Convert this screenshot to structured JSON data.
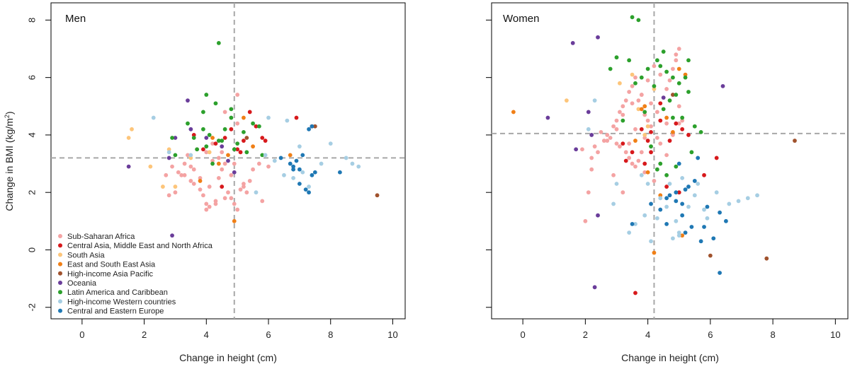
{
  "chart_data": {
    "type": "scatter",
    "colors": {
      "Sub-Saharan Africa": "#f4a3a3",
      "Central Asia, Middle East and North Africa": "#d7191c",
      "South Asia": "#fdc57a",
      "East and South East Asia": "#f07f16",
      "High-income Asia Pacific": "#a0522d",
      "Oceania": "#6a3d9a",
      "Latin America and Caribbean": "#2ca02c",
      "High-income Western countries": "#a6cee3",
      "Central and Eastern Europe": "#1f78b4"
    },
    "legend": [
      "Sub-Saharan Africa",
      "Central Asia, Middle East and North Africa",
      "South Asia",
      "East and South East Asia",
      "High-income Asia Pacific",
      "Oceania",
      "Latin America and Caribbean",
      "High-income Western countries",
      "Central and Eastern Europe"
    ],
    "panels": [
      {
        "title": "Men",
        "xlabel": "Change in height (cm)",
        "ylabel": "Change in BMI (kg/m",
        "ylabel_sup": "2",
        "ylabel_end": ")",
        "xlim": [
          -1,
          10.4
        ],
        "ylim": [
          -2.4,
          8.6
        ],
        "xticks": [
          0,
          2,
          4,
          6,
          8,
          10
        ],
        "yticks": [
          -2,
          0,
          2,
          4,
          6,
          8
        ],
        "vline": 4.9,
        "hline": 3.2,
        "series": [
          {
            "name": "Sub-Saharan Africa",
            "x": [
              5.0,
              4.6,
              4.0,
              4.1,
              4.3,
              3.8,
              3.5,
              4.5,
              4.2,
              4.9,
              5.0,
              5.2,
              3.1,
              3.3,
              3.6,
              2.7,
              2.8,
              3.0,
              3.2,
              4.4,
              4.7,
              4.8,
              5.3,
              5.5,
              5.8,
              6.0,
              3.9,
              4.0,
              4.6,
              2.9,
              3.4,
              3.7,
              4.2,
              4.4,
              4.9,
              5.0,
              5.1,
              3.3,
              3.6,
              4.5,
              4.8,
              5.4,
              5.7,
              3.8,
              4.1,
              4.6,
              4.0,
              4.3,
              5.2,
              3.5
            ],
            "y": [
              5.4,
              4.8,
              3.4,
              2.2,
              1.6,
              2.5,
              2.9,
              2.8,
              3.1,
              3.0,
              4.4,
              2.3,
              2.7,
              2.6,
              2.3,
              2.6,
              1.9,
              2.0,
              2.6,
              3.2,
              2.0,
              1.8,
              2.0,
              2.8,
              1.7,
              2.9,
              1.9,
              1.6,
              3.0,
              2.9,
              3.3,
              3.5,
              3.7,
              2.5,
              1.6,
              1.4,
              2.1,
              3.0,
              2.8,
              3.4,
              2.6,
              2.4,
              3.0,
              2.1,
              1.5,
              1.8,
              1.4,
              1.7,
              2.2,
              2.4
            ]
          },
          {
            "name": "Central Asia, Middle East and North Africa",
            "x": [
              5.4,
              5.8,
              4.8,
              5.1,
              4.3,
              3.9,
              5.6,
              4.6,
              5.0,
              5.2,
              6.9,
              7.4,
              4.5,
              5.9,
              3.6
            ],
            "y": [
              4.8,
              3.9,
              4.2,
              3.4,
              3.7,
              3.5,
              4.3,
              3.9,
              3.5,
              3.8,
              4.6,
              4.3,
              2.2,
              3.8,
              4.0
            ]
          },
          {
            "name": "South Asia",
            "x": [
              1.6,
              1.5,
              2.2,
              2.6,
              3.0,
              2.8,
              4.1,
              3.5
            ],
            "y": [
              4.2,
              3.9,
              2.9,
              2.2,
              2.2,
              3.5,
              3.4,
              3.2
            ]
          },
          {
            "name": "East and South East Asia",
            "x": [
              4.9,
              3.8,
              4.4,
              5.5,
              5.2,
              4.7,
              6.7,
              4.2
            ],
            "y": [
              1.0,
              2.4,
              3.0,
              3.6,
              4.6,
              3.3,
              3.3,
              3.9
            ]
          },
          {
            "name": "High-income Asia Pacific",
            "x": [
              9.5,
              7.5,
              5.3
            ],
            "y": [
              1.9,
              4.3,
              3.9
            ]
          },
          {
            "name": "Oceania",
            "x": [
              2.9,
              1.5,
              3.4,
              4.0,
              4.7,
              3.0,
              4.9,
              4.5,
              3.5,
              2.8
            ],
            "y": [
              0.5,
              2.9,
              5.2,
              3.9,
              3.1,
              3.9,
              2.7,
              3.6,
              4.2,
              3.2
            ]
          },
          {
            "name": "Latin America and Caribbean",
            "x": [
              4.4,
              4.0,
              4.8,
              3.9,
              4.3,
              3.4,
              4.6,
              4.1,
              5.0,
              5.5,
              3.7,
              3.0,
              3.6,
              5.2,
              4.5,
              4.9,
              5.8,
              4.2,
              3.9,
              5.3,
              2.9,
              4.8,
              5.7,
              4.4,
              4.0
            ],
            "y": [
              7.2,
              5.4,
              4.9,
              4.8,
              5.1,
              4.4,
              4.2,
              4.0,
              3.7,
              4.4,
              3.5,
              3.3,
              3.9,
              4.1,
              3.8,
              3.5,
              3.3,
              3.0,
              4.2,
              3.4,
              3.9,
              4.6,
              4.3,
              3.8,
              3.6
            ]
          },
          {
            "name": "High-income Western countries",
            "x": [
              8.0,
              8.7,
              8.9,
              7.0,
              6.5,
              7.7,
              6.2,
              5.6,
              5.9,
              2.3,
              2.8,
              3.5,
              6.8,
              7.3,
              7.1,
              6.6,
              6.0,
              8.5
            ],
            "y": [
              3.7,
              3.0,
              2.9,
              3.6,
              2.6,
              3.0,
              3.1,
              2.0,
              3.3,
              4.6,
              3.4,
              3.3,
              2.5,
              2.2,
              2.7,
              4.5,
              4.6,
              3.2
            ]
          },
          {
            "name": "Central and Eastern Europe",
            "x": [
              7.4,
              6.8,
              7.0,
              7.5,
              7.2,
              6.9,
              7.1,
              6.7,
              8.3,
              7.3,
              7.0,
              6.8,
              7.4,
              6.4,
              7.3
            ],
            "y": [
              4.3,
              2.9,
              2.8,
              2.7,
              2.1,
              3.1,
              3.3,
              3.0,
              2.7,
              2.0,
              2.3,
              2.8,
              2.6,
              3.2,
              4.2
            ]
          }
        ]
      },
      {
        "title": "Women",
        "xlabel": "Change in height (cm)",
        "xlim": [
          -1,
          10.4
        ],
        "ylim": [
          -2.4,
          8.6
        ],
        "xticks": [
          0,
          2,
          4,
          6,
          8,
          10
        ],
        "yticks": [
          -2,
          0,
          2,
          4,
          6,
          8
        ],
        "vline": 4.2,
        "hline": 4.05,
        "series": [
          {
            "name": "Sub-Saharan Africa",
            "x": [
              2.0,
              2.2,
              2.4,
              2.6,
              2.7,
              2.9,
              3.0,
              3.1,
              3.2,
              3.3,
              3.4,
              3.5,
              3.6,
              3.7,
              3.8,
              3.9,
              4.0,
              4.1,
              4.3,
              4.5,
              4.6,
              4.7,
              4.8,
              4.9,
              5.0,
              5.1,
              2.5,
              2.8,
              3.1,
              3.4,
              3.6,
              3.9,
              4.2,
              4.4,
              4.6,
              4.8,
              5.0,
              3.0,
              3.3,
              3.7,
              2.9,
              3.2,
              3.5,
              3.8,
              4.1,
              4.4,
              2.1,
              2.3,
              2.7,
              3.0,
              3.2,
              3.5,
              3.8,
              4.0,
              4.2,
              1.9,
              2.2,
              3.6,
              3.9,
              4.6,
              4.9,
              5.0,
              3.4,
              3.8,
              4.3
            ],
            "y": [
              1.0,
              2.8,
              3.4,
              3.8,
              4.0,
              4.3,
              4.5,
              4.8,
              5.0,
              5.2,
              5.5,
              5.7,
              6.0,
              5.2,
              4.9,
              4.7,
              4.5,
              4.3,
              4.8,
              5.3,
              5.6,
              5.9,
              6.3,
              6.6,
              7.0,
              4.5,
              4.1,
              3.9,
              3.6,
              3.2,
              2.9,
              2.7,
              2.4,
              3.7,
              3.3,
              4.0,
              4.4,
              3.7,
              3.4,
              3.1,
              2.6,
              2.0,
              3.0,
              5.4,
              5.1,
              6.1,
              2.0,
              3.6,
              3.8,
              4.2,
              4.7,
              5.1,
              5.4,
              5.9,
              6.4,
              3.5,
              3.2,
              4.2,
              3.9,
              4.4,
              6.8,
              5.0,
              3.7,
              3.4,
              3.9
            ]
          },
          {
            "name": "Central Asia, Middle East and North Africa",
            "x": [
              3.6,
              3.2,
              3.5,
              4.0,
              3.8,
              4.4,
              4.9,
              5.1,
              5.3,
              4.7,
              4.1,
              3.9,
              3.3,
              4.6,
              5.0,
              5.8,
              6.2,
              4.4,
              4.1
            ],
            "y": [
              -1.5,
              3.7,
              3.4,
              3.8,
              4.2,
              4.5,
              4.4,
              4.2,
              4.0,
              3.8,
              3.4,
              3.0,
              3.1,
              2.2,
              2.0,
              2.6,
              3.2,
              5.1,
              4.1
            ]
          },
          {
            "name": "South Asia",
            "x": [
              1.4,
              3.1,
              3.5,
              4.2,
              4.0,
              3.7,
              3.9
            ],
            "y": [
              5.2,
              5.8,
              6.1,
              5.6,
              4.3,
              4.9,
              4.0
            ]
          },
          {
            "name": "East and South East Asia",
            "x": [
              -0.3,
              3.6,
              4.2,
              4.4,
              4.0,
              3.8,
              5.0,
              5.2,
              4.8,
              5.1,
              4.6,
              3.9
            ],
            "y": [
              4.8,
              3.8,
              -0.1,
              1.9,
              2.7,
              4.9,
              6.3,
              6.1,
              4.1,
              0.5,
              4.6,
              5.0
            ]
          },
          {
            "name": "High-income Asia Pacific",
            "x": [
              8.7,
              7.8,
              6.0,
              4.8
            ],
            "y": [
              3.8,
              -0.3,
              -0.2,
              5.4
            ]
          },
          {
            "name": "Oceania",
            "x": [
              1.6,
              2.4,
              6.4,
              0.8,
              1.7,
              2.4,
              2.3,
              2.1,
              4.5,
              2.2
            ],
            "y": [
              7.2,
              7.4,
              5.7,
              4.6,
              3.5,
              1.2,
              -1.3,
              4.8,
              5.3,
              4.0
            ]
          },
          {
            "name": "Latin America and Caribbean",
            "x": [
              3.5,
              3.7,
              4.5,
              4.4,
              4.3,
              4.0,
              3.8,
              3.6,
              3.4,
              4.6,
              4.8,
              5.0,
              5.2,
              5.3,
              4.9,
              4.7,
              4.2,
              3.2,
              3.0,
              2.8,
              5.5,
              5.4,
              5.7,
              4.1,
              4.3,
              4.6,
              4.9,
              5.1,
              3.9,
              4.5,
              5.3,
              4.8,
              4.4
            ],
            "y": [
              8.1,
              8.0,
              6.9,
              6.4,
              6.6,
              6.3,
              6.0,
              5.8,
              6.6,
              6.2,
              6.0,
              5.8,
              6.0,
              6.6,
              5.4,
              5.2,
              5.7,
              4.5,
              6.7,
              6.3,
              4.3,
              3.4,
              4.1,
              3.6,
              2.8,
              2.6,
              2.9,
              4.6,
              4.8,
              4.9,
              5.5,
              4.6,
              3.0
            ]
          },
          {
            "name": "High-income Western countries",
            "x": [
              2.1,
              2.3,
              3.6,
              3.9,
              4.3,
              4.4,
              4.6,
              4.9,
              5.0,
              5.2,
              5.6,
              5.8,
              6.2,
              6.6,
              7.5,
              3.0,
              2.9,
              3.4,
              4.0,
              4.7,
              5.5,
              5.9,
              4.1,
              3.8,
              5.3,
              6.9,
              7.2,
              4.8,
              5.1,
              5.0
            ],
            "y": [
              4.2,
              5.2,
              0.9,
              1.2,
              1.1,
              1.8,
              1.5,
              1.0,
              0.5,
              2.1,
              2.3,
              1.4,
              2.0,
              1.6,
              1.9,
              2.3,
              1.6,
              0.6,
              2.3,
              2.3,
              1.9,
              1.1,
              0.3,
              2.6,
              1.5,
              1.7,
              1.8,
              0.4,
              2.5,
              0.6
            ]
          },
          {
            "name": "Central and Eastern Europe",
            "x": [
              3.5,
              4.6,
              5.3,
              5.6,
              5.0,
              4.9,
              5.1,
              5.4,
              4.7,
              5.2,
              5.9,
              6.3,
              6.5,
              6.1,
              5.7,
              5.8,
              4.4,
              6.3,
              4.6,
              5.2,
              5.5,
              4.9,
              5.1,
              4.1
            ],
            "y": [
              0.9,
              1.8,
              2.2,
              3.2,
              3.0,
              1.7,
              1.2,
              0.8,
              1.9,
              2.1,
              1.5,
              1.3,
              1.0,
              0.4,
              0.3,
              0.8,
              1.4,
              -0.8,
              0.9,
              0.6,
              2.4,
              2.0,
              1.6,
              1.6
            ]
          }
        ]
      }
    ]
  }
}
